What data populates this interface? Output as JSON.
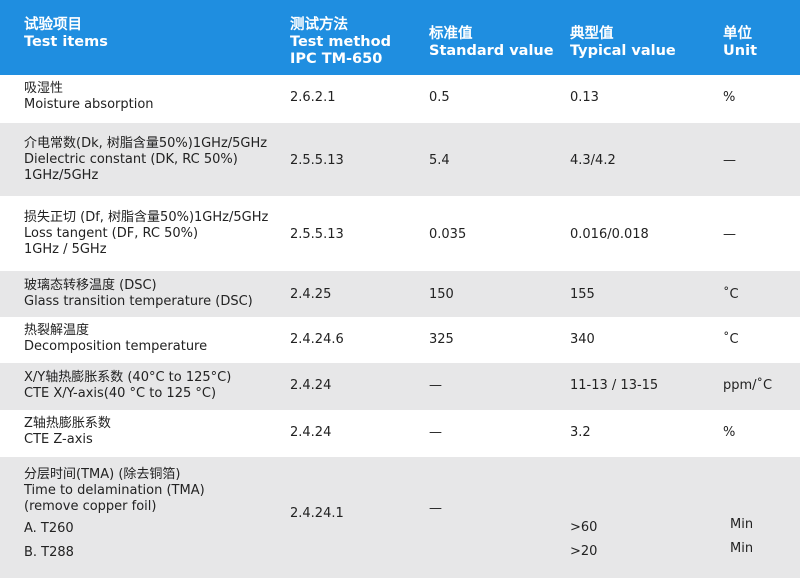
{
  "header": {
    "col1_cn": "试验项目",
    "col1_en": "Test items",
    "col2_cn": "测试方法",
    "col2_en": "Test method",
    "col2_en2": "IPC TM-650",
    "col3_cn": "标准值",
    "col3_en": "Standard value",
    "col4_cn": "典型值",
    "col4_en": "Typical value",
    "col5_cn": "单位",
    "col5_en": "Unit"
  },
  "rows": [
    {
      "item_cn": "吸湿性",
      "item_en": "Moisture absorption",
      "method": "2.6.2.1",
      "standard": "0.5",
      "typical": "0.13",
      "unit": "%"
    },
    {
      "item_cn": "介电常数(Dk, 树脂含量50%)1GHz/5GHz",
      "item_en": "Dielectric constant (DK, RC 50%)",
      "item_en2": "1GHz/5GHz",
      "method": "2.5.5.13",
      "standard": "5.4",
      "typical": "4.3/4.2",
      "unit": "—"
    },
    {
      "item_cn": "损失正切 (Df, 树脂含量50%)1GHz/5GHz",
      "item_en": "Loss tangent (DF, RC 50%)",
      "item_en2": "1GHz / 5GHz",
      "method": "2.5.5.13",
      "standard": "0.035",
      "typical": "0.016/0.018",
      "unit": "—"
    },
    {
      "item_cn": "玻璃态转移温度 (DSC)",
      "item_en": "Glass transition temperature (DSC)",
      "method": "2.4.25",
      "standard": "150",
      "typical": "155",
      "unit": "˚C"
    },
    {
      "item_cn": "热裂解温度",
      "item_en": "Decomposition temperature",
      "method": "2.4.24.6",
      "standard": "325",
      "typical": "340",
      "unit": "˚C"
    },
    {
      "item_cn": "X/Y轴热膨胀系数 (40°C to 125°C)",
      "item_en": "CTE X/Y-axis(40 °C to 125 °C)",
      "method": "2.4.24",
      "standard": "—",
      "typical": "11-13 / 13-15",
      "unit": "ppm/˚C"
    },
    {
      "item_cn": "Z轴热膨胀系数",
      "item_en": "CTE Z-axis",
      "method": "2.4.24",
      "standard": "—",
      "typical": "3.2",
      "unit": "%"
    },
    {
      "item_cn": "分层时间(TMA) (除去铜箔)",
      "item_en": "Time to delamination (TMA)",
      "item_en2": "(remove copper foil)",
      "sub_a": "A. T260",
      "sub_b": "B. T288",
      "method": "2.4.24.1",
      "standard": "—",
      "typical_a": ">60",
      "typical_b": ">20",
      "unit_a": "Min",
      "unit_b": "Min"
    }
  ]
}
